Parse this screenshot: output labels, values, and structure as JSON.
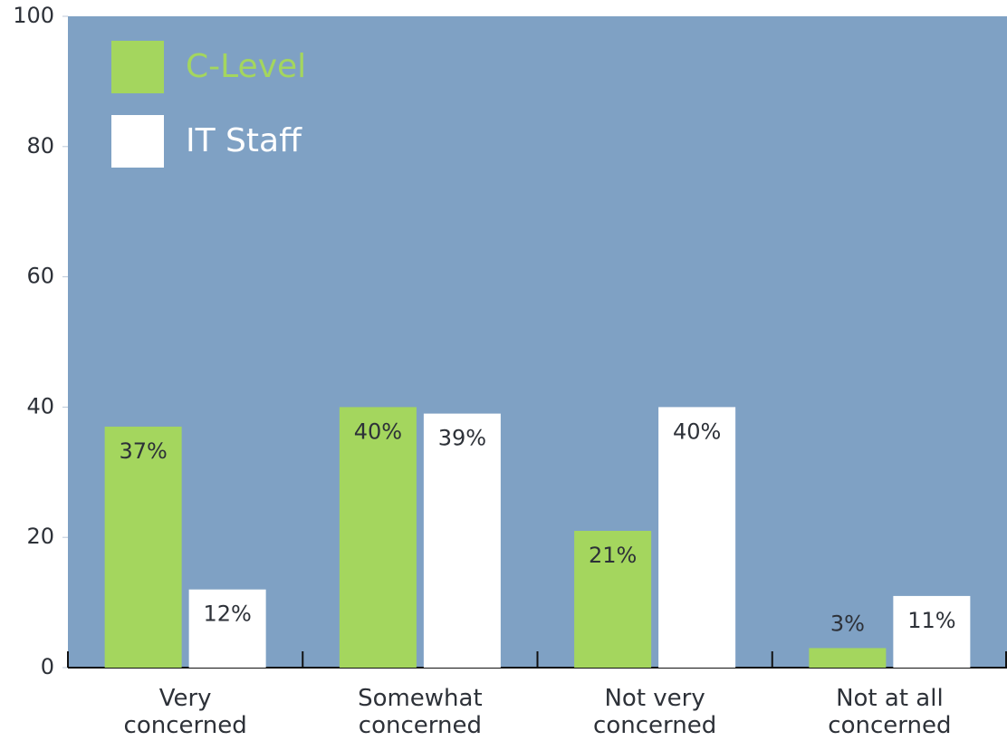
{
  "chart_data": {
    "type": "bar",
    "categories": [
      "Very\nconcerned",
      "Somewhat\nconcerned",
      "Not very\nconcerned",
      "Not at all\nconcerned"
    ],
    "series": [
      {
        "name": "C-Level",
        "color": "#a4d65e",
        "values": [
          37,
          40,
          21,
          3
        ],
        "value_labels": [
          "37%",
          "40%",
          "21%",
          "3%"
        ]
      },
      {
        "name": "IT Staff",
        "color": "#ffffff",
        "values": [
          12,
          39,
          40,
          11
        ],
        "value_labels": [
          "12%",
          "39%",
          "40%",
          "11%"
        ]
      }
    ],
    "ylim": [
      0,
      100
    ],
    "yticks": [
      0,
      20,
      40,
      60,
      80,
      100
    ],
    "background": "#7fa1c4",
    "legend": "upper left"
  }
}
